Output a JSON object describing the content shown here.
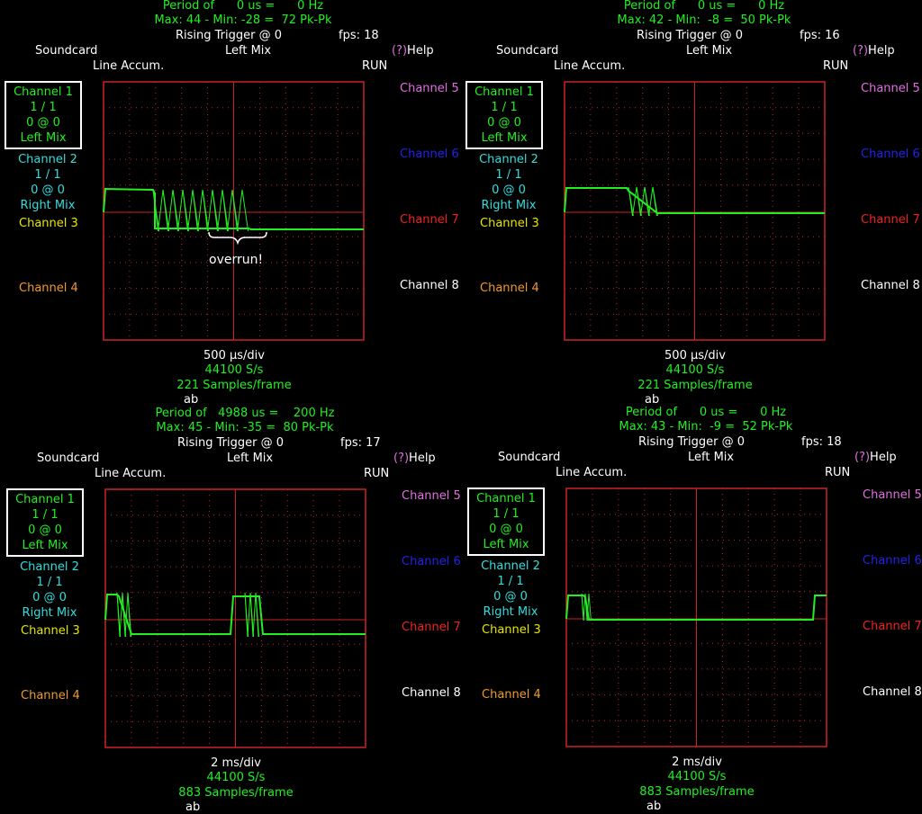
{
  "panels": [
    {
      "period": "Period of      0 us =      0 Hz",
      "maxmin": "Max: 44 - Min: -28 =  72 Pk-Pk",
      "trigger": "Rising Trigger @ 0",
      "fps": "fps: 18",
      "soundcard": "Soundcard",
      "mix": "Left Mix",
      "help": "Help",
      "help_prefix": "(?)",
      "line_accum": "Line Accum.",
      "run": "RUN",
      "ch1": [
        "Channel 1",
        "1 / 1",
        "0 @ 0",
        "Left Mix"
      ],
      "ch2": [
        "Channel 2",
        "1 / 1",
        "0 @ 0",
        "Right Mix"
      ],
      "ch3": "Channel 3",
      "ch4": "Channel 4",
      "ch5": "Channel 5",
      "ch6": "Channel 6",
      "ch7": "Channel 7",
      "ch8": "Channel 8",
      "timebase": "500 µs/div",
      "rate": "44100 S/s",
      "samples": "221 Samples/frame",
      "ab": "ab",
      "annotation": "overrun!"
    },
    {
      "period": "Period of      0 us =      0 Hz",
      "maxmin": "Max: 42 - Min:  -8 =  50 Pk-Pk",
      "trigger": "Rising Trigger @ 0",
      "fps": "fps: 16",
      "soundcard": "Soundcard",
      "mix": "Left Mix",
      "help": "Help",
      "help_prefix": "(?)",
      "line_accum": "Line Accum.",
      "run": "RUN",
      "ch1": [
        "Channel 1",
        "1 / 1",
        "0 @ 0",
        "Left Mix"
      ],
      "ch2": [
        "Channel 2",
        "1 / 1",
        "0 @ 0",
        "Right Mix"
      ],
      "ch3": "Channel 3",
      "ch4": "Channel 4",
      "ch5": "Channel 5",
      "ch6": "Channel 6",
      "ch7": "Channel 7",
      "ch8": "Channel 8",
      "timebase": "500 µs/div",
      "rate": "44100 S/s",
      "samples": "221 Samples/frame",
      "ab": "ab",
      "annotation": ""
    },
    {
      "period": "Period of   4988 us =    200 Hz",
      "maxmin": "Max: 45 - Min: -35 =  80 Pk-Pk",
      "trigger": "Rising Trigger @ 0",
      "fps": "fps: 17",
      "soundcard": "Soundcard",
      "mix": "Left Mix",
      "help": "Help",
      "help_prefix": "(?)",
      "line_accum": "Line Accum.",
      "run": "RUN",
      "ch1": [
        "Channel 1",
        "1 / 1",
        "0 @ 0",
        "Left Mix"
      ],
      "ch2": [
        "Channel 2",
        "1 / 1",
        "0 @ 0",
        "Right Mix"
      ],
      "ch3": "Channel 3",
      "ch4": "Channel 4",
      "ch5": "Channel 5",
      "ch6": "Channel 6",
      "ch7": "Channel 7",
      "ch8": "Channel 8",
      "timebase": "2 ms/div",
      "rate": "44100 S/s",
      "samples": "883 Samples/frame",
      "ab": "ab",
      "annotation": ""
    },
    {
      "period": "Period of      0 us =      0 Hz",
      "maxmin": "Max: 43 - Min:  -9 =  52 Pk-Pk",
      "trigger": "Rising Trigger @ 0",
      "fps": "fps: 18",
      "soundcard": "Soundcard",
      "mix": "Left Mix",
      "help": "Help",
      "help_prefix": "(?)",
      "line_accum": "Line Accum.",
      "run": "RUN",
      "ch1": [
        "Channel 1",
        "1 / 1",
        "0 @ 0",
        "Left Mix"
      ],
      "ch2": [
        "Channel 2",
        "1 / 1",
        "0 @ 0",
        "Right Mix"
      ],
      "ch3": "Channel 3",
      "ch4": "Channel 4",
      "ch5": "Channel 5",
      "ch6": "Channel 6",
      "ch7": "Channel 7",
      "ch8": "Channel 8",
      "timebase": "2 ms/div",
      "rate": "44100 S/s",
      "samples": "883 Samples/frame",
      "ab": "ab",
      "annotation": ""
    }
  ],
  "colors": {
    "background": "#000000",
    "trace": "#22ee22",
    "grid": "#cc2222",
    "channel1": "#22ee22",
    "channel2": "#33dddd",
    "channel3": "#e6e600",
    "channel4": "#f09a2a",
    "channel5": "#e070e0",
    "channel6": "#2222ee",
    "channel7": "#ee2222",
    "channel8": "#ffffff"
  }
}
